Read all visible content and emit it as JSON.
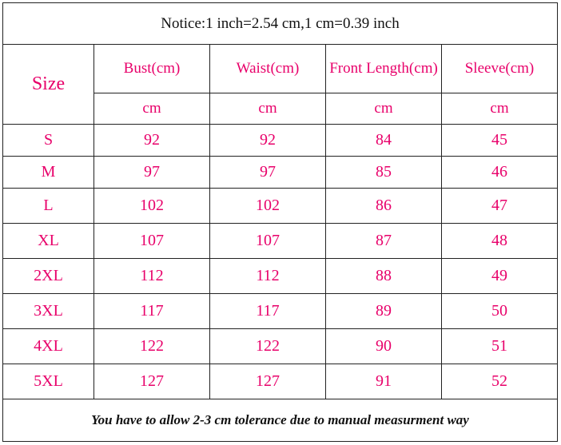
{
  "notice": "Notice:1 inch=2.54 cm,1 cm=0.39 inch",
  "header": {
    "size_label": "Size",
    "columns": [
      "Bust(cm)",
      "Waist(cm)",
      "Front Length(cm)",
      "Sleeve(cm)"
    ],
    "units": [
      "cm",
      "cm",
      "cm",
      "cm"
    ]
  },
  "rows": [
    {
      "size": "S",
      "values": [
        "92",
        "92",
        "84",
        "45"
      ]
    },
    {
      "size": "M",
      "values": [
        "97",
        "97",
        "85",
        "46"
      ]
    },
    {
      "size": "L",
      "values": [
        "102",
        "102",
        "86",
        "47"
      ]
    },
    {
      "size": "XL",
      "values": [
        "107",
        "107",
        "87",
        "48"
      ]
    },
    {
      "size": "2XL",
      "values": [
        "112",
        "112",
        "88",
        "49"
      ]
    },
    {
      "size": "3XL",
      "values": [
        "117",
        "117",
        "89",
        "50"
      ]
    },
    {
      "size": "4XL",
      "values": [
        "122",
        "122",
        "90",
        "51"
      ]
    },
    {
      "size": "5XL",
      "values": [
        "127",
        "127",
        "91",
        "52"
      ]
    }
  ],
  "footer": "You have to allow 2-3 cm tolerance due to manual measurment way",
  "colors": {
    "accent": "#e8006a",
    "text": "#111111",
    "border": "#222222"
  }
}
